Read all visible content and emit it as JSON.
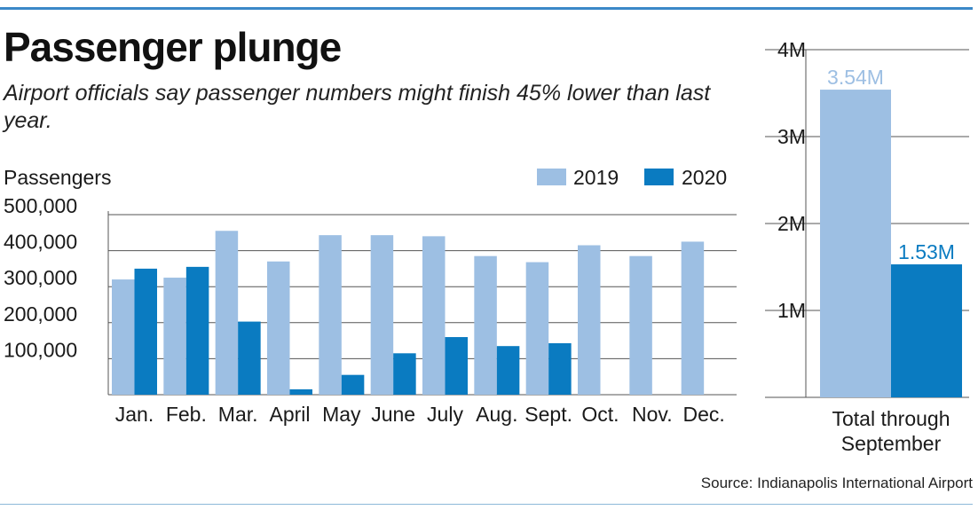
{
  "header": {
    "title": "Passenger plunge",
    "subtitle": "Airport officials say passenger numbers might finish 45% lower than last year."
  },
  "source": "Source: Indianapolis International Airport",
  "colors": {
    "c2019": "#9dbfe3",
    "c2020": "#0a7bc1",
    "rule": "#3b88c8"
  },
  "chart_data": [
    {
      "type": "bar",
      "ylabel": "Passengers",
      "legend_position": "top-right",
      "ylim": [
        0,
        500000
      ],
      "yticks": [
        100000,
        200000,
        300000,
        400000,
        500000
      ],
      "ytick_labels": [
        "100,000",
        "200,000",
        "300,000",
        "400,000",
        "500,000"
      ],
      "grid": true,
      "categories": [
        "Jan.",
        "Feb.",
        "Mar.",
        "April",
        "May",
        "June",
        "July",
        "Aug.",
        "Sept.",
        "Oct.",
        "Nov.",
        "Dec."
      ],
      "series": [
        {
          "name": "2019",
          "values": [
            320000,
            325000,
            455000,
            370000,
            443000,
            443000,
            440000,
            385000,
            368000,
            415000,
            385000,
            425000
          ]
        },
        {
          "name": "2020",
          "values": [
            350000,
            355000,
            203000,
            15000,
            55000,
            115000,
            160000,
            135000,
            143000,
            null,
            null,
            null
          ]
        }
      ]
    },
    {
      "type": "bar",
      "ylim": [
        0,
        4000000
      ],
      "yticks": [
        1000000,
        2000000,
        3000000,
        4000000
      ],
      "ytick_labels": [
        "1M",
        "2M",
        "3M",
        "4M"
      ],
      "grid": true,
      "categories": [
        "Total through September"
      ],
      "series": [
        {
          "name": "2019",
          "values": [
            3540000
          ],
          "labels": [
            "3.54M"
          ]
        },
        {
          "name": "2020",
          "values": [
            1530000
          ],
          "labels": [
            "1.53M"
          ]
        }
      ]
    }
  ]
}
